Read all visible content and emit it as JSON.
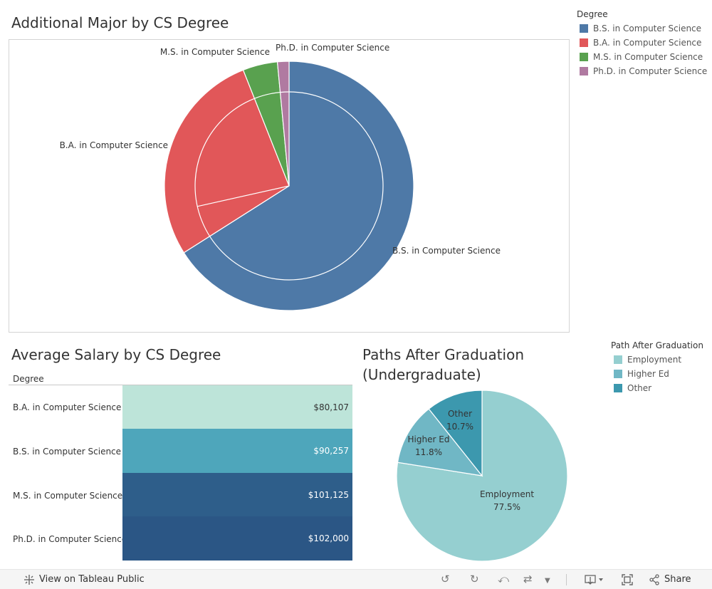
{
  "top_chart": {
    "title": "Additional Major by CS Degree",
    "legend_title": "Degree",
    "legend": [
      {
        "label": "B.S. in Computer Science",
        "color": "#4e79a7"
      },
      {
        "label": "B.A. in Computer Science",
        "color": "#e15759"
      },
      {
        "label": "M.S. in Computer Science",
        "color": "#59a14f"
      },
      {
        "label": "Ph.D. in Computer Science",
        "color": "#b07aa1"
      }
    ],
    "labels": {
      "bs": "B.S. in Computer Science",
      "ba": "B.A. in Computer Science",
      "ms": "M.S. in Computer Science",
      "phd": "Ph.D. in Computer Science"
    }
  },
  "salary_table": {
    "title": "Average Salary by CS Degree",
    "column_header": "Degree",
    "rows": [
      {
        "degree": "B.A. in Computer Science",
        "salary": "$80,107",
        "color": "#bde4d9",
        "text_color": "#333333"
      },
      {
        "degree": "B.S. in Computer Science",
        "salary": "$90,257",
        "color": "#4ea6bb",
        "text_color": "#ffffff"
      },
      {
        "degree": "M.S. in Computer Science",
        "salary": "$101,125",
        "color": "#2e5e8a",
        "text_color": "#ffffff"
      },
      {
        "degree": "Ph.D. in Computer Science",
        "salary": "$102,000",
        "color": "#2b5685",
        "text_color": "#ffffff"
      }
    ]
  },
  "paths_chart": {
    "title_line1": "Paths After Graduation",
    "title_line2": "(Undergraduate)",
    "legend_title": "Path After Graduation",
    "legend": [
      {
        "label": "Employment",
        "color": "#95cfd0"
      },
      {
        "label": "Higher Ed",
        "color": "#70b7c5"
      },
      {
        "label": "Other",
        "color": "#3c98ae"
      }
    ],
    "slices": [
      {
        "label": "Employment",
        "pct": "77.5%"
      },
      {
        "label": "Higher Ed",
        "pct": "11.8%"
      },
      {
        "label": "Other",
        "pct": "10.7%"
      }
    ]
  },
  "chart_data": [
    {
      "type": "pie",
      "title": "Additional Major by CS Degree",
      "legend_title": "Degree",
      "categories": [
        "B.S. in Computer Science",
        "B.A. in Computer Science",
        "M.S. in Computer Science",
        "Ph.D. in Computer Science"
      ],
      "values": [
        66,
        28,
        4.5,
        1.5
      ],
      "inner_ring_values": [
        71.5,
        28.5
      ],
      "colors": [
        "#4e79a7",
        "#e15759",
        "#59a14f",
        "#b07aa1"
      ]
    },
    {
      "type": "table",
      "title": "Average Salary by CS Degree",
      "categories": [
        "B.A. in Computer Science",
        "B.S. in Computer Science",
        "M.S. in Computer Science",
        "Ph.D. in Computer Science"
      ],
      "values": [
        80107,
        90257,
        101125,
        102000
      ]
    },
    {
      "type": "pie",
      "title": "Paths After Graduation (Undergraduate)",
      "legend_title": "Path After Graduation",
      "categories": [
        "Employment",
        "Higher Ed",
        "Other"
      ],
      "values": [
        77.5,
        11.8,
        10.7
      ],
      "colors": [
        "#95cfd0",
        "#70b7c5",
        "#3c98ae"
      ]
    }
  ],
  "footer": {
    "view_label": "View on Tableau Public",
    "share_label": "Share"
  }
}
